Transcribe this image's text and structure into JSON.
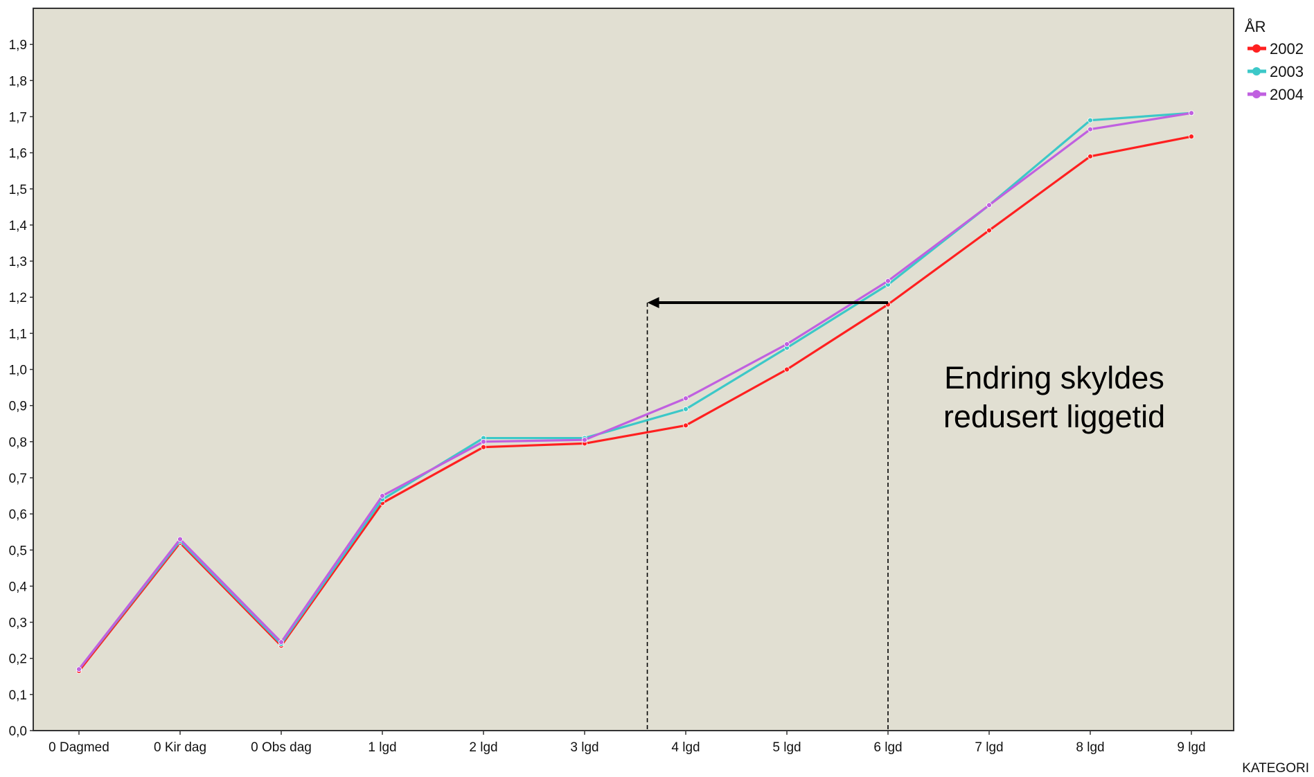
{
  "chart_data": {
    "type": "line",
    "xlabel": "KATEGORI",
    "ylabel": "",
    "ylim": [
      0,
      2.0
    ],
    "yticks": [
      "0,0",
      "0,1",
      "0,2",
      "0,3",
      "0,4",
      "0,5",
      "0,6",
      "0,7",
      "0,8",
      "0,9",
      "1,0",
      "1,1",
      "1,2",
      "1,3",
      "1,4",
      "1,5",
      "1,6",
      "1,7",
      "1,8",
      "1,9"
    ],
    "categories": [
      "0 Dagmed",
      "0 Kir dag",
      "0 Obs dag",
      "1 lgd",
      "2 lgd",
      "3 lgd",
      "4 lgd",
      "5 lgd",
      "6 lgd",
      "7 lgd",
      "8 lgd",
      "9 lgd"
    ],
    "legend_title": "ÅR",
    "legend_position": "top-right",
    "grid": false,
    "series": [
      {
        "name": "2002",
        "color": "#ff2020",
        "values": [
          0.165,
          0.52,
          0.235,
          0.63,
          0.785,
          0.795,
          0.845,
          1.0,
          1.18,
          1.385,
          1.59,
          1.645
        ]
      },
      {
        "name": "2003",
        "color": "#3cc8c8",
        "values": [
          0.17,
          0.525,
          0.24,
          0.64,
          0.81,
          0.81,
          0.89,
          1.06,
          1.235,
          1.455,
          1.69,
          1.71
        ]
      },
      {
        "name": "2004",
        "color": "#c060e0",
        "values": [
          0.17,
          0.53,
          0.245,
          0.65,
          0.8,
          0.805,
          0.92,
          1.07,
          1.245,
          1.455,
          1.665,
          1.71
        ]
      }
    ],
    "annotations": {
      "text_line1": "Endring skyldes",
      "text_line2": "redusert liggetid",
      "arrow_from_category": "6 lgd",
      "arrow_to_category_fraction": 5.62,
      "arrow_value": 1.185
    }
  }
}
